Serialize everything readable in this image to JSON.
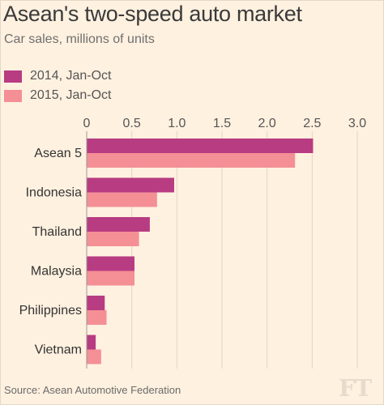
{
  "title": "Asean's two-speed auto market",
  "subtitle": "Car sales, millions of units",
  "source": "Source: Asean Automotive Federation",
  "logo": "FT",
  "colors": {
    "background": "#fff1e0",
    "series_2014": "#b83c82",
    "series_2015": "#f48f96",
    "grid": "#e3d4c6",
    "text": "#3a3a3a"
  },
  "chart_data": {
    "type": "bar",
    "orientation": "horizontal",
    "categories": [
      "Asean 5",
      "Indonesia",
      "Thailand",
      "Malaysia",
      "Philippines",
      "Vietnam"
    ],
    "series": [
      {
        "name": "2014, Jan-Oct",
        "values": [
          2.51,
          0.97,
          0.7,
          0.53,
          0.2,
          0.1
        ]
      },
      {
        "name": "2015, Jan-Oct",
        "values": [
          2.31,
          0.78,
          0.58,
          0.53,
          0.22,
          0.16
        ]
      }
    ],
    "xlim": [
      0,
      3.0
    ],
    "xticks": [
      "0",
      "0.5",
      "1.0",
      "1.5",
      "2.0",
      "2.5",
      "3.0"
    ],
    "grid": true,
    "legend": "top-left"
  }
}
